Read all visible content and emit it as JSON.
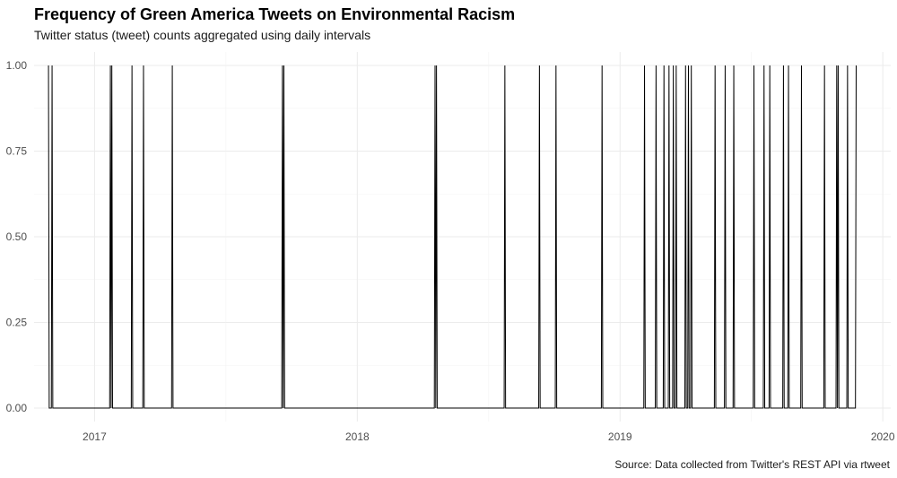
{
  "chart_data": {
    "type": "line",
    "title": "Frequency of Green America Tweets on Environmental Racism",
    "subtitle": "Twitter status (tweet) counts aggregated using daily intervals",
    "caption": "Source: Data collected from Twitter's REST API via rtweet",
    "xlabel": "",
    "ylabel": "",
    "xlim": [
      "2016-10-09",
      "2020-01-12"
    ],
    "ylim": [
      0,
      1
    ],
    "x_ticks": [
      {
        "label": "2017",
        "date": "2017-01-01"
      },
      {
        "label": "2018",
        "date": "2018-01-01"
      },
      {
        "label": "2019",
        "date": "2019-01-01"
      },
      {
        "label": "2020",
        "date": "2020-01-01"
      }
    ],
    "y_ticks": [
      {
        "label": "0.00",
        "value": 0
      },
      {
        "label": "0.25",
        "value": 0.25
      },
      {
        "label": "0.50",
        "value": 0.5
      },
      {
        "label": "0.75",
        "value": 0.75
      },
      {
        "label": "1.00",
        "value": 1
      }
    ],
    "grid": true,
    "line_color": "#000000",
    "series": [
      {
        "tweet_dates": [
          "2016-10-29",
          "2016-11-03",
          "2017-01-23",
          "2017-01-25",
          "2017-02-22",
          "2017-03-10",
          "2017-04-19",
          "2017-09-19",
          "2017-09-21",
          "2018-04-19",
          "2018-04-21",
          "2018-07-25",
          "2018-09-11",
          "2018-10-04",
          "2018-12-07",
          "2019-02-04",
          "2019-02-20",
          "2019-03-03",
          "2019-03-10",
          "2019-03-16",
          "2019-03-20",
          "2019-04-02",
          "2019-04-06",
          "2019-04-10",
          "2019-05-13",
          "2019-05-27",
          "2019-06-08",
          "2019-07-06",
          "2019-07-20",
          "2019-07-28",
          "2019-08-16",
          "2019-08-23",
          "2019-09-10",
          "2019-10-12",
          "2019-10-29",
          "2019-10-31",
          "2019-11-13",
          "2019-11-25"
        ]
      }
    ]
  }
}
